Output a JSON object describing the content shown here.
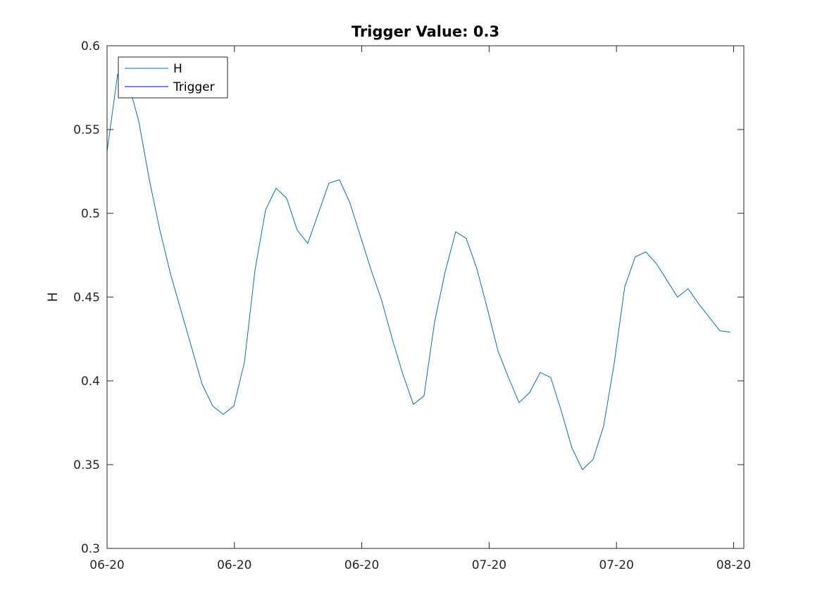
{
  "chart_data": {
    "type": "line",
    "title": "Trigger Value: 0.3",
    "xlabel": "",
    "ylabel": "H",
    "ylim": [
      0.3,
      0.6
    ],
    "xlim": [
      0,
      1
    ],
    "x_tick_labels": [
      "06-20",
      "06-20",
      "06-20",
      "07-20",
      "07-20",
      "08-20"
    ],
    "x_tick_positions": [
      0,
      0.2,
      0.4,
      0.6,
      0.8,
      0.984
    ],
    "y_ticks": [
      0.3,
      0.35,
      0.4,
      0.45,
      0.5,
      0.55,
      0.6
    ],
    "y_tick_labels": [
      "0.3",
      "0.35",
      "0.4",
      "0.45",
      "0.5",
      "0.55",
      "0.6"
    ],
    "legend": "top-left",
    "grid": false,
    "series": [
      {
        "name": "H",
        "color": "#0072BD",
        "x": [
          0,
          0.0166,
          0.0332,
          0.0498,
          0.0664,
          0.0829,
          0.0995,
          0.1161,
          0.1327,
          0.1493,
          0.1659,
          0.1825,
          0.1991,
          0.2157,
          0.2323,
          0.2489,
          0.2654,
          0.282,
          0.2986,
          0.3152,
          0.3318,
          0.3484,
          0.365,
          0.3816,
          0.3982,
          0.4148,
          0.4313,
          0.4479,
          0.4645,
          0.4811,
          0.4977,
          0.5143,
          0.5309,
          0.5475,
          0.5641,
          0.5807,
          0.5973,
          0.6138,
          0.6304,
          0.647,
          0.6636,
          0.6802,
          0.6968,
          0.7134,
          0.73,
          0.7466,
          0.7632,
          0.7798,
          0.7963,
          0.8129,
          0.8295,
          0.8461,
          0.8627,
          0.8793,
          0.8959,
          0.9125,
          0.9291,
          0.9457,
          0.9622,
          0.9788
        ],
        "values": [
          0.537,
          0.583,
          0.578,
          0.555,
          0.52,
          0.49,
          0.464,
          0.442,
          0.42,
          0.398,
          0.385,
          0.38,
          0.385,
          0.411,
          0.466,
          0.502,
          0.515,
          0.509,
          0.49,
          0.482,
          0.5,
          0.518,
          0.52,
          0.506,
          0.486,
          0.466,
          0.448,
          0.425,
          0.404,
          0.386,
          0.391,
          0.435,
          0.465,
          0.489,
          0.485,
          0.467,
          0.443,
          0.418,
          0.402,
          0.387,
          0.393,
          0.405,
          0.402,
          0.382,
          0.36,
          0.347,
          0.353,
          0.373,
          0.41,
          0.456,
          0.474,
          0.477,
          0.47,
          0.46,
          0.45,
          0.455,
          0.446,
          0.438,
          0.43,
          0.429
        ]
      },
      {
        "name": "Trigger",
        "color": "#0000FF",
        "x": [
          0,
          0.984
        ],
        "values": [
          0.3,
          0.3
        ]
      }
    ]
  }
}
